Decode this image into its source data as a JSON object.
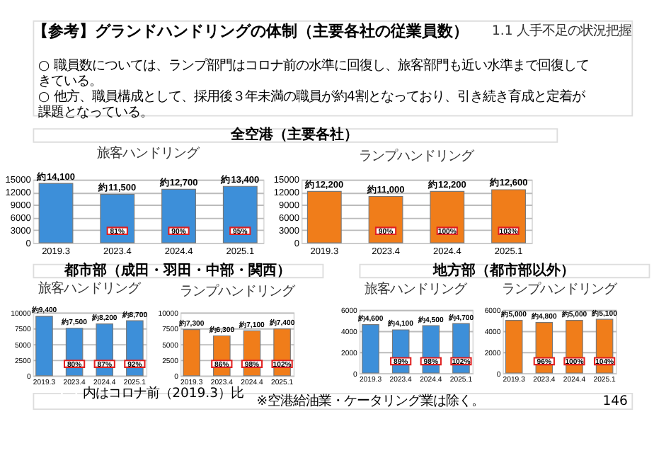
{
  "chart_data": [
    {
      "type": "bar",
      "title": "旅客ハンドリング",
      "subtitle": "全空港（主要各社）",
      "categories": [
        "2019.3",
        "2023.4",
        "2024.4",
        "2025.1"
      ],
      "values": [
        14100,
        11500,
        12700,
        13400
      ],
      "color": "#3d8fd9",
      "value_labels": [
        "約14,100",
        "約11,500",
        "約12,700",
        "約13,400"
      ],
      "ylim": [
        0,
        15000
      ],
      "yticks": [
        0,
        3000,
        6000,
        9000,
        12000,
        15000
      ],
      "grid": "y",
      "annotations": [
        "【参考】グランドハンドリングの体制（主要各社の従業員数）",
        "1.1 人手不足の状況把握",
        "○ 職員数については、ランプ部門はコロナ前の水準に回復し、旅客部門も近い水準まで回復してきている。",
        "○ 他方、職員構成として、採用後３年未満の職員が約4割となっており、引き続き育成と定着が課題となっている。",
        {
          "text": "81%",
          "x": "2023.4"
        },
        {
          "text": "90%",
          "x": "2024.4"
        },
        {
          "text": "95%",
          "x": "2025.1"
        }
      ]
    },
    {
      "type": "bar",
      "title": "ランプハンドリング",
      "categories": [
        "2019.3",
        "2023.4",
        "2024.4",
        "2025.1"
      ],
      "values": [
        12200,
        11000,
        12200,
        12600
      ],
      "color": "#f07d1a",
      "value_labels": [
        "約12,200",
        "約11,000",
        "約12,200",
        "約12,600"
      ],
      "ylim": [
        0,
        15000
      ],
      "yticks": [
        0,
        3000,
        6000,
        9000,
        12000,
        15000
      ],
      "grid": "y",
      "annotations": [
        {
          "text": "90%",
          "x": "2023.4"
        },
        {
          "text": "100%",
          "x": "2024.4"
        },
        {
          "text": "103%",
          "x": "2025.1"
        }
      ]
    },
    {
      "type": "bar",
      "title": "旅客ハンドリング",
      "subtitle": "都市部（成田・羽田・中部・関西）",
      "categories": [
        "2019.3",
        "2023.4",
        "2024.4",
        "2025.1"
      ],
      "values": [
        9400,
        7500,
        8200,
        8700
      ],
      "color": "#3d8fd9",
      "value_labels": [
        "約9,400",
        "約7,500",
        "約8,200",
        "約8,700"
      ],
      "ylim": [
        0,
        10000
      ],
      "yticks": [
        0,
        2500,
        5000,
        7500,
        10000
      ],
      "grid": "y",
      "annotations": [
        {
          "text": "80%",
          "x": "2023.4"
        },
        {
          "text": "87%",
          "x": "2024.4"
        },
        {
          "text": "92%",
          "x": "2025.1"
        }
      ]
    },
    {
      "type": "bar",
      "title": "ランプハンドリング",
      "categories": [
        "2019.3",
        "2023.4",
        "2024.4",
        "2025.1"
      ],
      "values": [
        7300,
        6300,
        7100,
        7400
      ],
      "color": "#f07d1a",
      "value_labels": [
        "約7,300",
        "約6,300",
        "約7,100",
        "約7,400"
      ],
      "ylim": [
        0,
        10000
      ],
      "yticks": [
        0,
        2500,
        5000,
        7500,
        10000
      ],
      "grid": "y",
      "annotations": [
        {
          "text": "86%",
          "x": "2023.4"
        },
        {
          "text": "98%",
          "x": "2024.4"
        },
        {
          "text": "102%",
          "x": "2025.1"
        }
      ]
    },
    {
      "type": "bar",
      "title": "旅客ハンドリング",
      "subtitle": "地方部（都市部以外）",
      "categories": [
        "2019.3",
        "2023.4",
        "2024.4",
        "2025.1"
      ],
      "values": [
        4600,
        4100,
        4500,
        4700
      ],
      "color": "#3d8fd9",
      "value_labels": [
        "約4,600",
        "約4,100",
        "約4,500",
        "約4,700"
      ],
      "ylim": [
        0,
        6000
      ],
      "yticks": [
        0,
        2000,
        4000,
        6000
      ],
      "grid": "y",
      "annotations": [
        {
          "text": "89%",
          "x": "2023.4"
        },
        {
          "text": "98%",
          "x": "2024.4"
        },
        {
          "text": "102%",
          "x": "2025.1"
        }
      ]
    },
    {
      "type": "bar",
      "title": "ランプハンドリング",
      "categories": [
        "2019.3",
        "2023.4",
        "2024.4",
        "2025.1"
      ],
      "values": [
        5000,
        4800,
        5000,
        5100
      ],
      "color": "#f07d1a",
      "value_labels": [
        "約5,000",
        "約4,800",
        "約5,000",
        "約5,100"
      ],
      "ylim": [
        0,
        6000
      ],
      "yticks": [
        0,
        2000,
        4000,
        6000
      ],
      "grid": "y",
      "annotations": [
        {
          "text": "96%",
          "x": "2023.4"
        },
        {
          "text": "100%",
          "x": "2024.4"
        },
        {
          "text": "104%",
          "x": "2025.1"
        },
        "内はコロナ前（2019.3）比",
        "※空港給油業・ケータリング業は除く。",
        "146"
      ]
    }
  ]
}
